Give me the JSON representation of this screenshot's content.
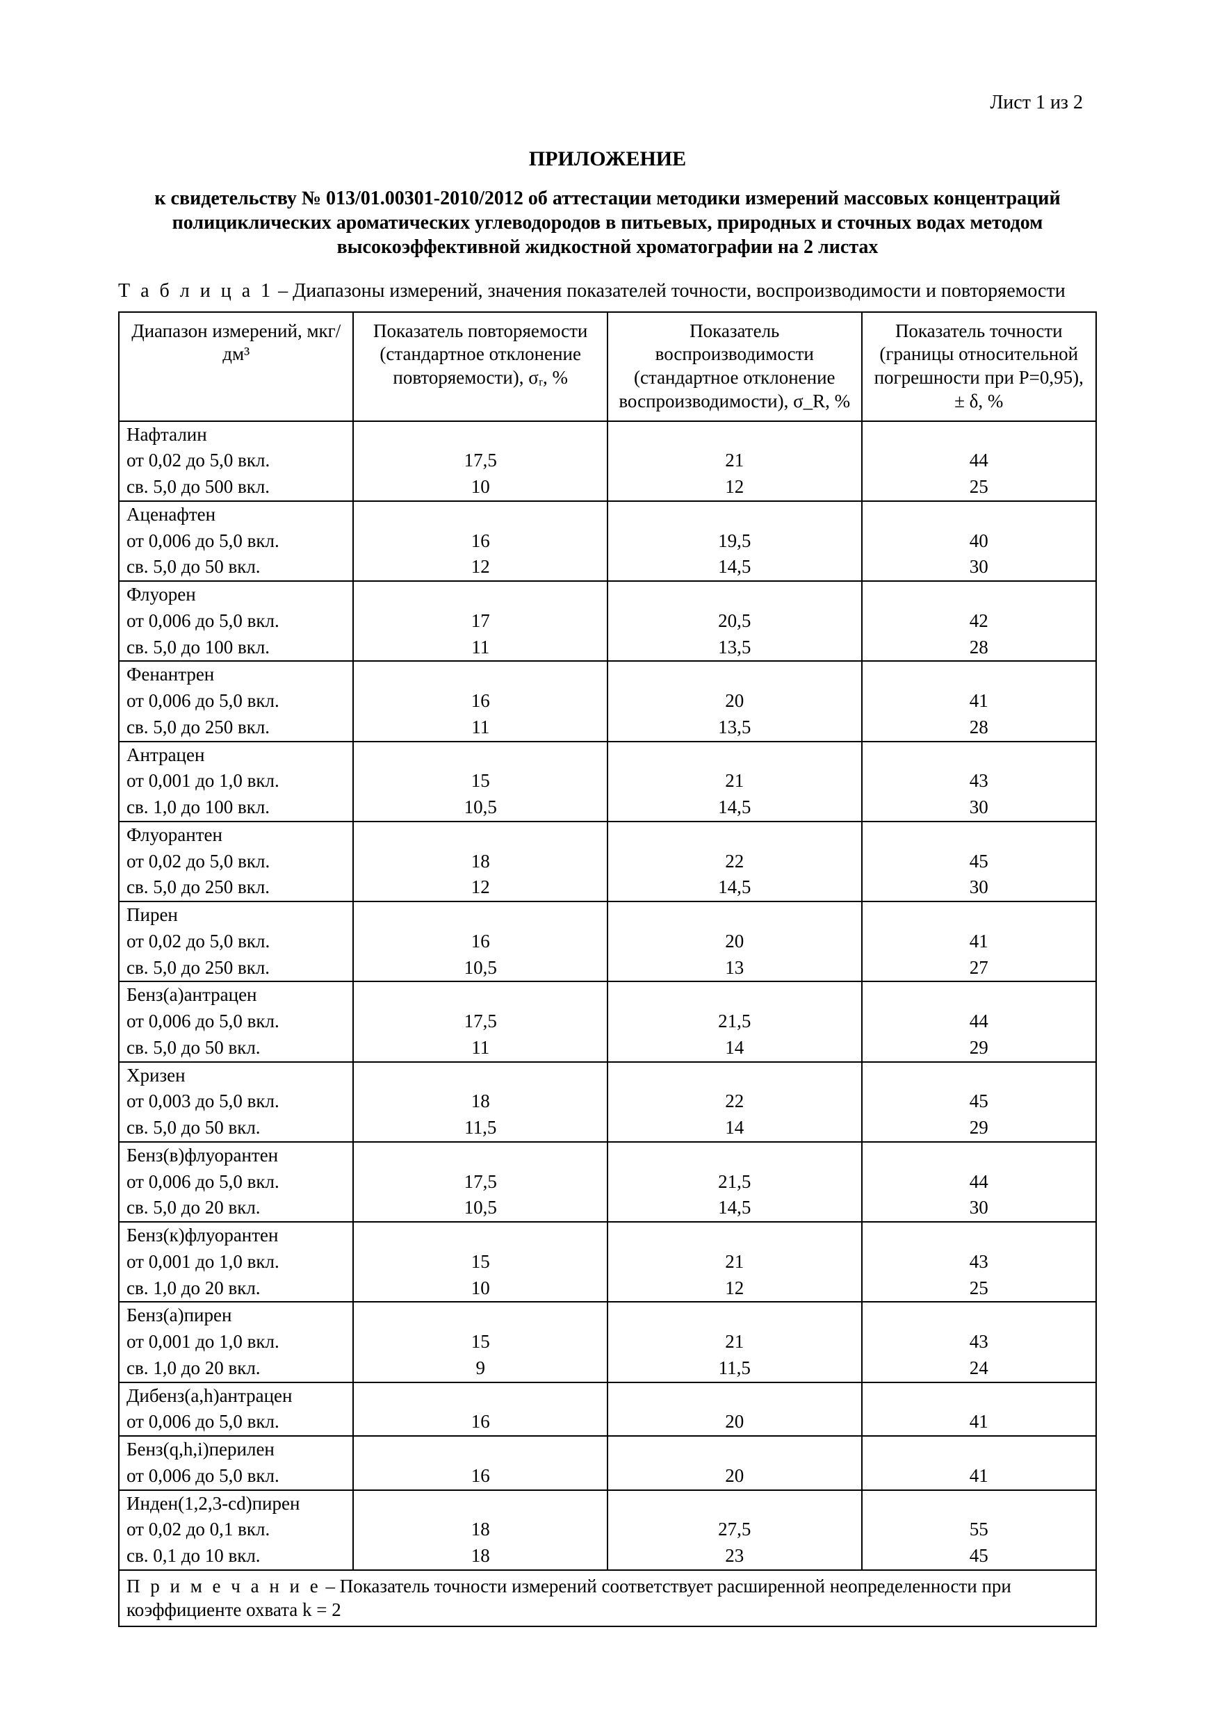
{
  "sheet_label": "Лист 1 из 2",
  "title": "ПРИЛОЖЕНИЕ",
  "subtitle": "к свидетельству № 013/01.00301-2010/2012 об аттестации методики измерений массовых концентраций полициклических ароматических углеводородов в питьевых, природных и сточных водах методом высокоэффективной жидкостной хроматографии на 2 листах",
  "table_caption_label": "Т а б л и ц а 1",
  "table_caption_text": " – Диапазоны измерений, значения показателей точности, воспроизводимости и повторяемости",
  "headers": {
    "c1": "Диапазон измерений, мкг/дм³",
    "c2": "Показатель повторяемости (стандартное отклонение повторяемости), σᵣ, %",
    "c3": "Показатель воспроизводимости (стандартное отклонение воспроизводимости), σ_R, %",
    "c4": "Показатель точности (границы относительной погрешности при P=0,95), ± δ, %"
  },
  "groups": [
    {
      "name": "Нафталин",
      "rows": [
        {
          "range": "от 0,02 до 5,0 вкл.",
          "rep": "17,5",
          "reprod": "21",
          "acc": "44"
        },
        {
          "range": "св. 5,0 до 500 вкл.",
          "rep": "10",
          "reprod": "12",
          "acc": "25"
        }
      ]
    },
    {
      "name": "Аценафтен",
      "rows": [
        {
          "range": "от 0,006 до 5,0 вкл.",
          "rep": "16",
          "reprod": "19,5",
          "acc": "40"
        },
        {
          "range": "св. 5,0 до 50 вкл.",
          "rep": "12",
          "reprod": "14,5",
          "acc": "30"
        }
      ]
    },
    {
      "name": "Флуорен",
      "rows": [
        {
          "range": "от 0,006 до 5,0 вкл.",
          "rep": "17",
          "reprod": "20,5",
          "acc": "42"
        },
        {
          "range": "св. 5,0 до 100 вкл.",
          "rep": "11",
          "reprod": "13,5",
          "acc": "28"
        }
      ]
    },
    {
      "name": "Фенантрен",
      "rows": [
        {
          "range": "от 0,006 до 5,0 вкл.",
          "rep": "16",
          "reprod": "20",
          "acc": "41"
        },
        {
          "range": "св. 5,0 до 250 вкл.",
          "rep": "11",
          "reprod": "13,5",
          "acc": "28"
        }
      ]
    },
    {
      "name": "Антрацен",
      "rows": [
        {
          "range": "от 0,001 до 1,0 вкл.",
          "rep": "15",
          "reprod": "21",
          "acc": "43"
        },
        {
          "range": "св. 1,0 до 100 вкл.",
          "rep": "10,5",
          "reprod": "14,5",
          "acc": "30"
        }
      ]
    },
    {
      "name": "Флуорантен",
      "rows": [
        {
          "range": "от 0,02 до 5,0 вкл.",
          "rep": "18",
          "reprod": "22",
          "acc": "45"
        },
        {
          "range": "св. 5,0 до 250 вкл.",
          "rep": "12",
          "reprod": "14,5",
          "acc": "30"
        }
      ]
    },
    {
      "name": "Пирен",
      "rows": [
        {
          "range": "от 0,02 до 5,0 вкл.",
          "rep": "16",
          "reprod": "20",
          "acc": "41"
        },
        {
          "range": "св. 5,0 до 250 вкл.",
          "rep": "10,5",
          "reprod": "13",
          "acc": "27"
        }
      ]
    },
    {
      "name": "Бенз(а)антрацен",
      "rows": [
        {
          "range": "от 0,006 до 5,0 вкл.",
          "rep": "17,5",
          "reprod": "21,5",
          "acc": "44"
        },
        {
          "range": "св. 5,0 до 50 вкл.",
          "rep": "11",
          "reprod": "14",
          "acc": "29"
        }
      ]
    },
    {
      "name": "Хризен",
      "rows": [
        {
          "range": "от 0,003 до 5,0 вкл.",
          "rep": "18",
          "reprod": "22",
          "acc": "45"
        },
        {
          "range": "св. 5,0 до 50 вкл.",
          "rep": "11,5",
          "reprod": "14",
          "acc": "29"
        }
      ]
    },
    {
      "name": "Бенз(в)флуорантен",
      "rows": [
        {
          "range": "от 0,006 до 5,0 вкл.",
          "rep": "17,5",
          "reprod": "21,5",
          "acc": "44"
        },
        {
          "range": "св. 5,0 до 20 вкл.",
          "rep": "10,5",
          "reprod": "14,5",
          "acc": "30"
        }
      ]
    },
    {
      "name": "Бенз(к)флуорантен",
      "rows": [
        {
          "range": "от 0,001 до 1,0 вкл.",
          "rep": "15",
          "reprod": "21",
          "acc": "43"
        },
        {
          "range": "св. 1,0 до 20 вкл.",
          "rep": "10",
          "reprod": "12",
          "acc": "25"
        }
      ]
    },
    {
      "name": "Бенз(а)пирен",
      "rows": [
        {
          "range": "от 0,001 до 1,0 вкл.",
          "rep": "15",
          "reprod": "21",
          "acc": "43"
        },
        {
          "range": "св. 1,0 до 20 вкл.",
          "rep": "9",
          "reprod": "11,5",
          "acc": "24"
        }
      ]
    },
    {
      "name": "Дибенз(a,h)антрацен",
      "rows": [
        {
          "range": "от 0,006 до 5,0 вкл.",
          "rep": "16",
          "reprod": "20",
          "acc": "41"
        }
      ]
    },
    {
      "name": "Бенз(q,h,i)перилен",
      "rows": [
        {
          "range": "от 0,006 до 5,0 вкл.",
          "rep": "16",
          "reprod": "20",
          "acc": "41"
        }
      ]
    },
    {
      "name": "Инден(1,2,3-cd)пирен",
      "rows": [
        {
          "range": "от 0,02 до 0,1 вкл.",
          "rep": "18",
          "reprod": "27,5",
          "acc": "55"
        },
        {
          "range": "св. 0,1 до 10 вкл.",
          "rep": "18",
          "reprod": "23",
          "acc": "45"
        }
      ]
    }
  ],
  "note_label": "П р и м е ч а н и е",
  "note_text": " – Показатель точности измерений соответствует расширенной неопределенности при коэффициенте охвата k = 2"
}
